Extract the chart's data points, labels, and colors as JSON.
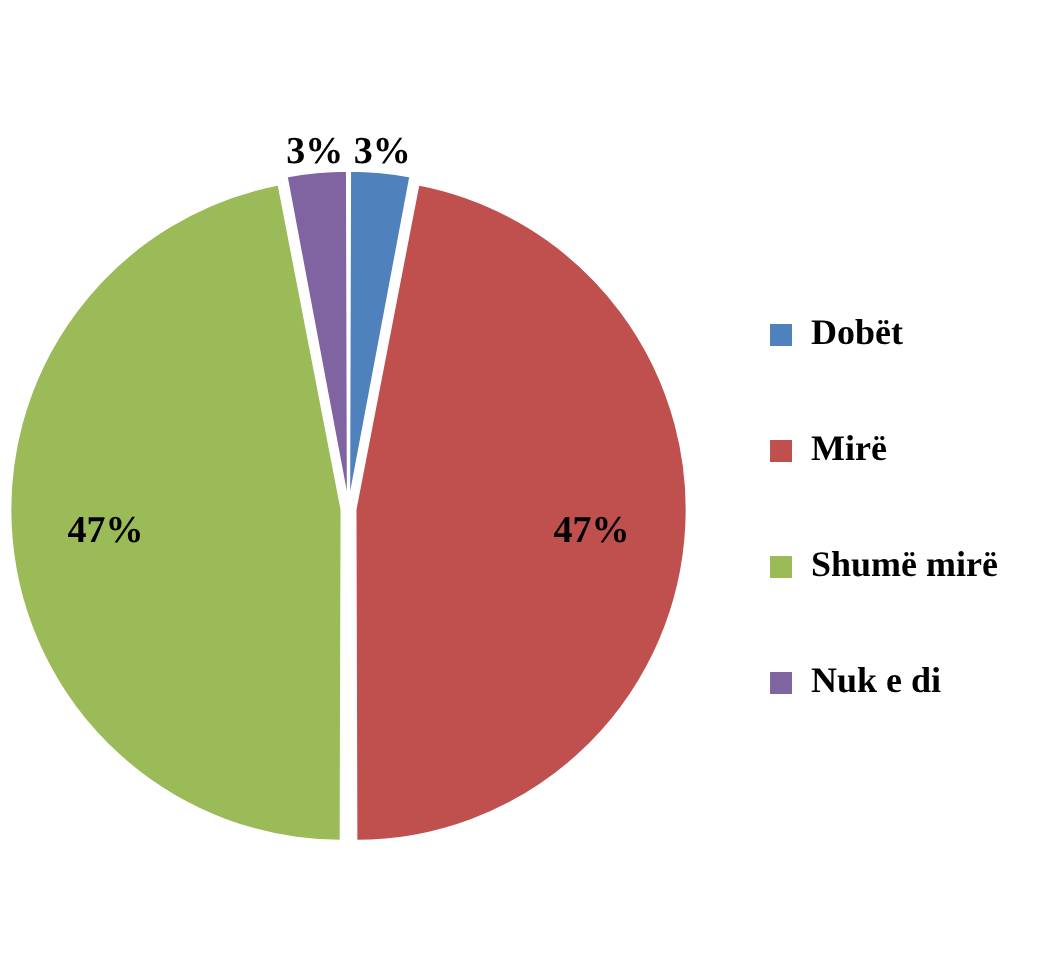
{
  "chart_data": {
    "type": "pie",
    "categories": [
      "Dobët",
      "Mirë",
      "Shumë mirë",
      "Nuk e di"
    ],
    "values": [
      3,
      47,
      47,
      3
    ],
    "colors": [
      "#4f81bd",
      "#c0504d",
      "#9bbb59",
      "#8064a2"
    ],
    "value_labels": [
      "3%",
      "47%",
      "47%",
      "3%"
    ],
    "legend": "right"
  }
}
